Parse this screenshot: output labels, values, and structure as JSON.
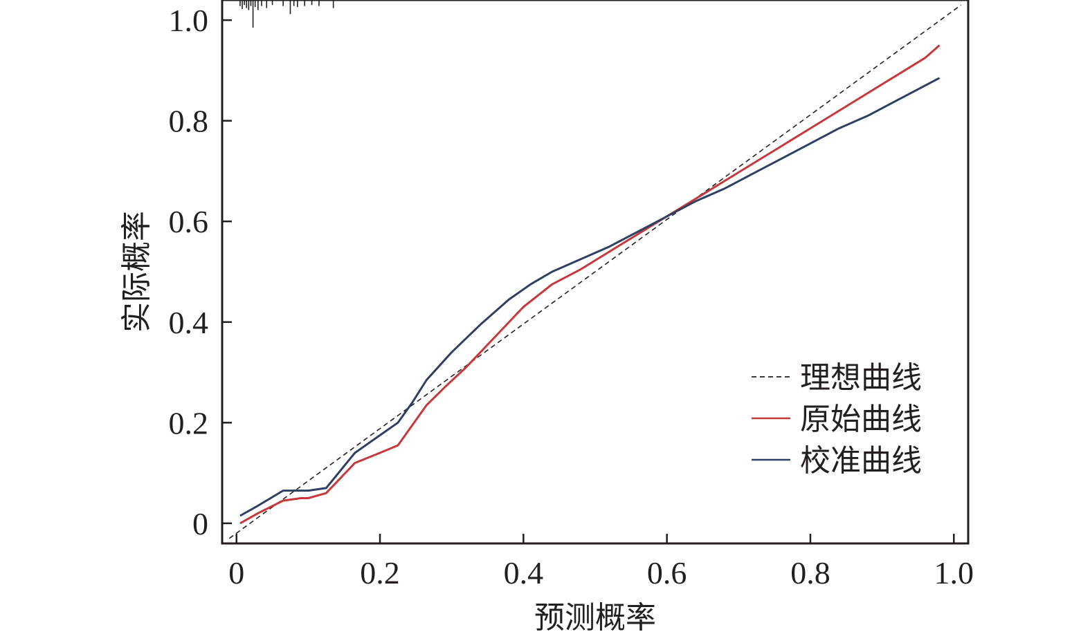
{
  "chart_data": {
    "type": "line",
    "xlabel": "预测概率",
    "ylabel": "实际概率",
    "xlim": [
      -0.02,
      1.02
    ],
    "ylim": [
      -0.04,
      1.04
    ],
    "x_ticks": [
      "0",
      "0.2",
      "0.4",
      "0.6",
      "0.8",
      "1.0"
    ],
    "y_ticks": [
      "0",
      "0.2",
      "0.4",
      "0.6",
      "0.8",
      "1.0"
    ],
    "legend_position": "bottom-right",
    "grid": false,
    "colors": {
      "ideal": "#231f20",
      "original": "#c8373a",
      "calibrated": "#2f3f63"
    },
    "series": [
      {
        "name": "理想曲线",
        "style": "dashed",
        "x": [
          -0.01,
          1.01
        ],
        "y": [
          -0.03,
          1.03
        ]
      },
      {
        "name": "原始曲线",
        "style": "solid",
        "x": [
          0.005,
          0.03,
          0.065,
          0.09,
          0.1,
          0.125,
          0.165,
          0.2,
          0.225,
          0.245,
          0.265,
          0.29,
          0.32,
          0.36,
          0.4,
          0.44,
          0.48,
          0.52,
          0.56,
          0.6,
          0.64,
          0.68,
          0.72,
          0.76,
          0.8,
          0.84,
          0.88,
          0.92,
          0.96,
          0.98
        ],
        "y": [
          0.0,
          0.02,
          0.045,
          0.05,
          0.05,
          0.06,
          0.12,
          0.14,
          0.155,
          0.195,
          0.235,
          0.27,
          0.31,
          0.37,
          0.43,
          0.475,
          0.505,
          0.54,
          0.575,
          0.61,
          0.645,
          0.68,
          0.715,
          0.75,
          0.785,
          0.82,
          0.855,
          0.89,
          0.925,
          0.95
        ]
      },
      {
        "name": "校准曲线",
        "style": "solid",
        "x": [
          0.005,
          0.03,
          0.065,
          0.09,
          0.1,
          0.125,
          0.165,
          0.2,
          0.225,
          0.245,
          0.265,
          0.3,
          0.34,
          0.38,
          0.41,
          0.44,
          0.48,
          0.52,
          0.56,
          0.6,
          0.64,
          0.68,
          0.72,
          0.76,
          0.8,
          0.84,
          0.88,
          0.92,
          0.96,
          0.98
        ],
        "y": [
          0.015,
          0.035,
          0.065,
          0.065,
          0.065,
          0.07,
          0.14,
          0.175,
          0.2,
          0.24,
          0.285,
          0.34,
          0.395,
          0.445,
          0.475,
          0.5,
          0.525,
          0.55,
          0.58,
          0.61,
          0.64,
          0.665,
          0.695,
          0.725,
          0.755,
          0.785,
          0.81,
          0.84,
          0.87,
          0.885
        ]
      }
    ],
    "rug": [
      {
        "x": 0.005,
        "h": 0.012
      },
      {
        "x": 0.008,
        "h": 0.018
      },
      {
        "x": 0.011,
        "h": 0.01
      },
      {
        "x": 0.014,
        "h": 0.016
      },
      {
        "x": 0.017,
        "h": 0.02
      },
      {
        "x": 0.02,
        "h": 0.012
      },
      {
        "x": 0.023,
        "h": 0.055
      },
      {
        "x": 0.026,
        "h": 0.014
      },
      {
        "x": 0.03,
        "h": 0.02
      },
      {
        "x": 0.035,
        "h": 0.012
      },
      {
        "x": 0.042,
        "h": 0.016
      },
      {
        "x": 0.05,
        "h": 0.01
      },
      {
        "x": 0.065,
        "h": 0.012
      },
      {
        "x": 0.075,
        "h": 0.028
      },
      {
        "x": 0.08,
        "h": 0.012
      },
      {
        "x": 0.085,
        "h": 0.014
      },
      {
        "x": 0.095,
        "h": 0.012
      },
      {
        "x": 0.105,
        "h": 0.01
      },
      {
        "x": 0.115,
        "h": 0.012
      },
      {
        "x": 0.135,
        "h": 0.016
      }
    ]
  }
}
